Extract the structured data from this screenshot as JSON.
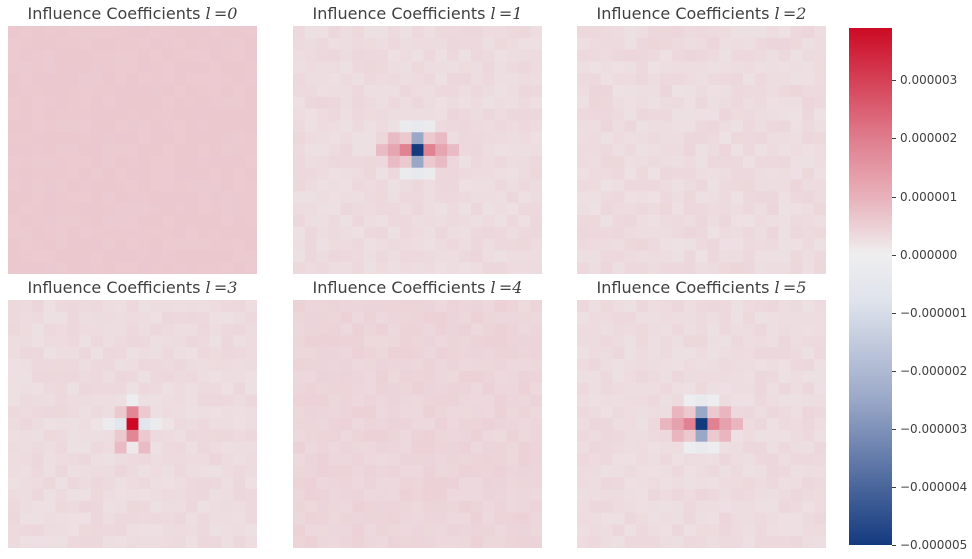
{
  "chart_data": {
    "type": "heatmap",
    "grid_size": 21,
    "colormap": {
      "vmin": -5e-06,
      "vmax": 3.9e-06,
      "stops": [
        {
          "value": -5e-06,
          "color": "#143a7e"
        },
        {
          "value": -2.5e-06,
          "color": "#9aa8c8"
        },
        {
          "value": -8e-07,
          "color": "#dfe3ec"
        },
        {
          "value": 0.0,
          "color": "#efeeef"
        },
        {
          "value": 1e-06,
          "color": "#e8b0ba"
        },
        {
          "value": 2e-06,
          "color": "#df7d8d"
        },
        {
          "value": 3.9e-06,
          "color": "#cc0a24"
        }
      ]
    },
    "panels": [
      {
        "title_text": "Influence Coefficients ",
        "title_math": "l =0",
        "base": 6e-07,
        "noise": 3e-08,
        "pattern": []
      },
      {
        "title_text": "Influence Coefficients ",
        "title_math": "l =1",
        "base": 3e-07,
        "noise": 8e-08,
        "pattern": [
          {
            "dx": 0,
            "dy": 0,
            "v": -5e-06
          },
          {
            "dx": 0,
            "dy": -1,
            "v": -2.5e-06
          },
          {
            "dx": 0,
            "dy": 1,
            "v": -2.5e-06
          },
          {
            "dx": -1,
            "dy": 0,
            "v": 1.9e-06
          },
          {
            "dx": 1,
            "dy": 0,
            "v": 1.9e-06
          },
          {
            "dx": -2,
            "dy": 0,
            "v": 1.2e-06
          },
          {
            "dx": 2,
            "dy": 0,
            "v": 1.2e-06
          },
          {
            "dx": -1,
            "dy": -1,
            "v": 6e-07
          },
          {
            "dx": 1,
            "dy": -1,
            "v": 6e-07
          },
          {
            "dx": -1,
            "dy": 1,
            "v": 6e-07
          },
          {
            "dx": 1,
            "dy": 1,
            "v": 6e-07
          },
          {
            "dx": 0,
            "dy": -2,
            "v": -4e-07
          },
          {
            "dx": 0,
            "dy": 2,
            "v": -4e-07
          },
          {
            "dx": -1,
            "dy": -2,
            "v": -2e-07
          },
          {
            "dx": 1,
            "dy": -2,
            "v": -2e-07
          },
          {
            "dx": -1,
            "dy": 2,
            "v": -2e-07
          },
          {
            "dx": 1,
            "dy": 2,
            "v": -2e-07
          },
          {
            "dx": -2,
            "dy": -1,
            "v": 8e-07
          },
          {
            "dx": 2,
            "dy": -1,
            "v": 8e-07
          },
          {
            "dx": -2,
            "dy": 1,
            "v": 8e-07
          },
          {
            "dx": 2,
            "dy": 1,
            "v": 8e-07
          },
          {
            "dx": -3,
            "dy": 0,
            "v": 8e-07
          },
          {
            "dx": 3,
            "dy": 0,
            "v": 8e-07
          }
        ]
      },
      {
        "title_text": "Influence Coefficients ",
        "title_math": "l =2",
        "base": 3e-07,
        "noise": 9e-08,
        "pattern": []
      },
      {
        "title_text": "Influence Coefficients ",
        "title_math": "l =3",
        "base": 3e-07,
        "noise": 8e-08,
        "pattern": [
          {
            "dx": 0,
            "dy": 0,
            "v": 3.9e-06
          },
          {
            "dx": 0,
            "dy": -1,
            "v": 1.8e-06
          },
          {
            "dx": 0,
            "dy": 1,
            "v": 1.8e-06
          },
          {
            "dx": -1,
            "dy": 0,
            "v": -6e-07
          },
          {
            "dx": 1,
            "dy": 0,
            "v": -6e-07
          },
          {
            "dx": -2,
            "dy": 0,
            "v": -2e-07
          },
          {
            "dx": 2,
            "dy": 0,
            "v": -2e-07
          },
          {
            "dx": 0,
            "dy": -2,
            "v": -1e-07
          },
          {
            "dx": 0,
            "dy": 2,
            "v": 1e-07
          },
          {
            "dx": -1,
            "dy": -1,
            "v": 6e-07
          },
          {
            "dx": 1,
            "dy": -1,
            "v": 6e-07
          },
          {
            "dx": -1,
            "dy": 1,
            "v": 6e-07
          },
          {
            "dx": 1,
            "dy": 1,
            "v": 6e-07
          },
          {
            "dx": -1,
            "dy": 2,
            "v": 8e-07
          },
          {
            "dx": 1,
            "dy": 2,
            "v": 8e-07
          },
          {
            "dx": -3,
            "dy": 0,
            "v": 2e-07
          },
          {
            "dx": 3,
            "dy": 0,
            "v": 2e-07
          }
        ]
      },
      {
        "title_text": "Influence Coefficients ",
        "title_math": "l =4",
        "base": 4e-07,
        "noise": 7e-08,
        "pattern": []
      },
      {
        "title_text": "Influence Coefficients ",
        "title_math": "l =5",
        "base": 3e-07,
        "noise": 8e-08,
        "pattern": [
          {
            "dx": 0,
            "dy": 0,
            "v": -5e-06
          },
          {
            "dx": 0,
            "dy": -1,
            "v": -2.5e-06
          },
          {
            "dx": 0,
            "dy": 1,
            "v": -2.5e-06
          },
          {
            "dx": -1,
            "dy": 0,
            "v": 1.9e-06
          },
          {
            "dx": 1,
            "dy": 0,
            "v": 1.9e-06
          },
          {
            "dx": -2,
            "dy": 0,
            "v": 1.3e-06
          },
          {
            "dx": 2,
            "dy": 0,
            "v": 1.3e-06
          },
          {
            "dx": -1,
            "dy": -1,
            "v": 6e-07
          },
          {
            "dx": 1,
            "dy": -1,
            "v": 6e-07
          },
          {
            "dx": -1,
            "dy": 1,
            "v": 6e-07
          },
          {
            "dx": 1,
            "dy": 1,
            "v": 6e-07
          },
          {
            "dx": 0,
            "dy": -2,
            "v": -3e-07
          },
          {
            "dx": 0,
            "dy": 2,
            "v": -3e-07
          },
          {
            "dx": -1,
            "dy": -2,
            "v": -1e-07
          },
          {
            "dx": 1,
            "dy": -2,
            "v": -1e-07
          },
          {
            "dx": -1,
            "dy": 2,
            "v": -1e-07
          },
          {
            "dx": 1,
            "dy": 2,
            "v": -1e-07
          },
          {
            "dx": -2,
            "dy": -1,
            "v": 9e-07
          },
          {
            "dx": 2,
            "dy": -1,
            "v": 9e-07
          },
          {
            "dx": -2,
            "dy": 1,
            "v": 9e-07
          },
          {
            "dx": 2,
            "dy": 1,
            "v": 9e-07
          },
          {
            "dx": -3,
            "dy": 0,
            "v": 9e-07
          },
          {
            "dx": 3,
            "dy": 0,
            "v": 9e-07
          }
        ]
      }
    ],
    "colorbar": {
      "ticks": [
        {
          "value": 3e-06,
          "label": "0.000003"
        },
        {
          "value": 2e-06,
          "label": "0.000002"
        },
        {
          "value": 1e-06,
          "label": "0.000001"
        },
        {
          "value": 0.0,
          "label": "0.000000"
        },
        {
          "value": -1e-06,
          "label": "−0.000001"
        },
        {
          "value": -2e-06,
          "label": "−0.000002"
        },
        {
          "value": -3e-06,
          "label": "−0.000003"
        },
        {
          "value": -4e-06,
          "label": "−0.000004"
        },
        {
          "value": -5e-06,
          "label": "−0.000005"
        }
      ]
    }
  }
}
